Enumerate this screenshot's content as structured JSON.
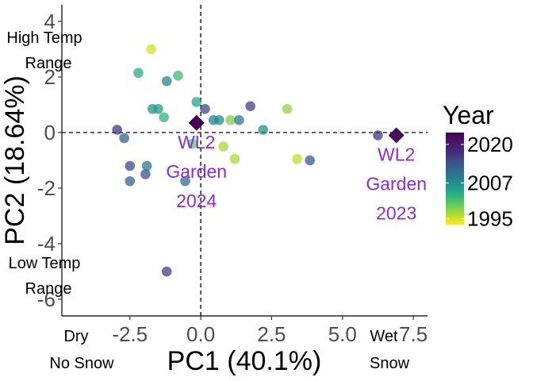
{
  "chart_data": {
    "type": "scatter",
    "title": "",
    "xlabel": "PC1 (40.1%)",
    "ylabel": "PC2 (18.64%)",
    "xlim": [
      -4.9,
      8.0
    ],
    "ylim": [
      -6.6,
      4.6
    ],
    "x_ticks": [
      -2.5,
      0.0,
      2.5,
      5.0,
      7.5
    ],
    "x_tick_labels": [
      "-2.5",
      "0.0",
      "2.5",
      "5.0",
      "7.5"
    ],
    "y_ticks": [
      4,
      2,
      0,
      -2,
      -4,
      -6
    ],
    "y_tick_labels": [
      "4",
      "2",
      "0",
      "-2",
      "-4",
      "-6"
    ],
    "grid": false,
    "reference_lines": {
      "x": 0,
      "y": 0,
      "style": "dashed"
    },
    "legend": {
      "title": "Year",
      "placement": "right",
      "type": "colorbar",
      "range": [
        1993,
        2024
      ],
      "ticks": [
        2020,
        2007,
        1995
      ],
      "tick_labels": [
        "2020",
        "2007",
        "1995"
      ],
      "palette": "viridis"
    },
    "corner_labels": {
      "top_left": [
        "High Temp",
        "Range"
      ],
      "bottom_left": [
        "Low Temp",
        "Range"
      ],
      "x_left": [
        "Dry",
        "No Snow"
      ],
      "x_right": [
        "Wet",
        "Snow"
      ]
    },
    "points": [
      {
        "x": -1.75,
        "y": 3.0,
        "year": 1995
      },
      {
        "x": -2.2,
        "y": 2.15,
        "year": 2005
      },
      {
        "x": -1.2,
        "y": 1.85,
        "year": 2010
      },
      {
        "x": -0.8,
        "y": 2.05,
        "year": 2003
      },
      {
        "x": -1.7,
        "y": 0.85,
        "year": 2008
      },
      {
        "x": -1.5,
        "y": 0.85,
        "year": 2007
      },
      {
        "x": -1.3,
        "y": 0.55,
        "year": 2004
      },
      {
        "x": -0.15,
        "y": 1.1,
        "year": 2006
      },
      {
        "x": 0.15,
        "y": 0.85,
        "year": 2017
      },
      {
        "x": 0.45,
        "y": 0.45,
        "year": 2010
      },
      {
        "x": 0.65,
        "y": 0.45,
        "year": 2009
      },
      {
        "x": 1.05,
        "y": 0.45,
        "year": 1999
      },
      {
        "x": 1.35,
        "y": 0.45,
        "year": 2011
      },
      {
        "x": 1.75,
        "y": 0.95,
        "year": 2018
      },
      {
        "x": 2.2,
        "y": 0.1,
        "year": 2008
      },
      {
        "x": 3.05,
        "y": 0.85,
        "year": 1998
      },
      {
        "x": -2.95,
        "y": 0.1,
        "year": 2019
      },
      {
        "x": -2.7,
        "y": -0.2,
        "year": 2014
      },
      {
        "x": -0.3,
        "y": -0.4,
        "year": 2001
      },
      {
        "x": 0.8,
        "y": -0.5,
        "year": 1997
      },
      {
        "x": 1.2,
        "y": -0.95,
        "year": 1997
      },
      {
        "x": 3.4,
        "y": -0.95,
        "year": 1996
      },
      {
        "x": 3.85,
        "y": -1.0,
        "year": 2015
      },
      {
        "x": -2.5,
        "y": -1.2,
        "year": 2017
      },
      {
        "x": -1.9,
        "y": -1.2,
        "year": 2012
      },
      {
        "x": -1.95,
        "y": -1.5,
        "year": 2016
      },
      {
        "x": -2.5,
        "y": -1.75,
        "year": 2014
      },
      {
        "x": -0.55,
        "y": -1.75,
        "year": 2013
      },
      {
        "x": -1.2,
        "y": -5.0,
        "year": 2018
      },
      {
        "x": 6.25,
        "y": -0.1,
        "year": 2019
      },
      {
        "x": -0.15,
        "y": 0.35,
        "year": 2024,
        "highlight": true,
        "label": [
          "WL2",
          "Garden",
          "2024"
        ]
      },
      {
        "x": 6.9,
        "y": -0.1,
        "year": 2023,
        "highlight": true,
        "label": [
          "WL2",
          "Garden",
          "2023"
        ]
      }
    ]
  }
}
